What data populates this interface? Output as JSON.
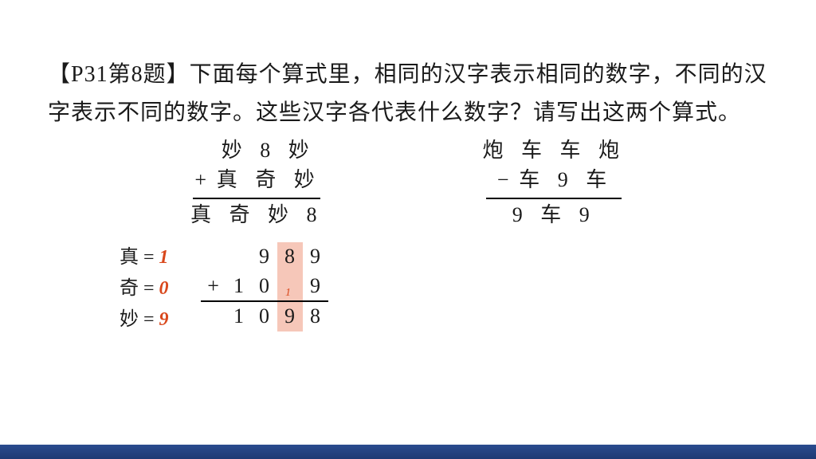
{
  "prompt": {
    "bracket": "【P31第8题】",
    "body": "下面每个算式里，相同的汉字表示相同的数字，不同的汉字表示不同的数字。这些汉字各代表什么数字？请写出这两个算式。"
  },
  "left": {
    "row1": "  妙 8 妙",
    "op": "+",
    "row2": "真 奇 妙",
    "sum": "真 奇 妙 8"
  },
  "right": {
    "row1": "炮 车 车 炮",
    "op": "−",
    "row2": "车 9 车",
    "diff": "9 车 9"
  },
  "assign": {
    "zhen": {
      "char": "真",
      "val": "1"
    },
    "qi": {
      "char": "奇",
      "val": "0"
    },
    "miao": {
      "char": "妙",
      "val": "9"
    }
  },
  "numeric": {
    "r1": [
      "",
      "9",
      "8",
      "9"
    ],
    "op": "+",
    "r2": [
      "1",
      "0",
      "",
      "9"
    ],
    "carry": "1",
    "sum": [
      "1",
      "0",
      "9",
      "8"
    ]
  },
  "colors": {
    "accent": "#d9481c",
    "highlight": "#f6c7b9",
    "footer": "#1e3a73"
  }
}
